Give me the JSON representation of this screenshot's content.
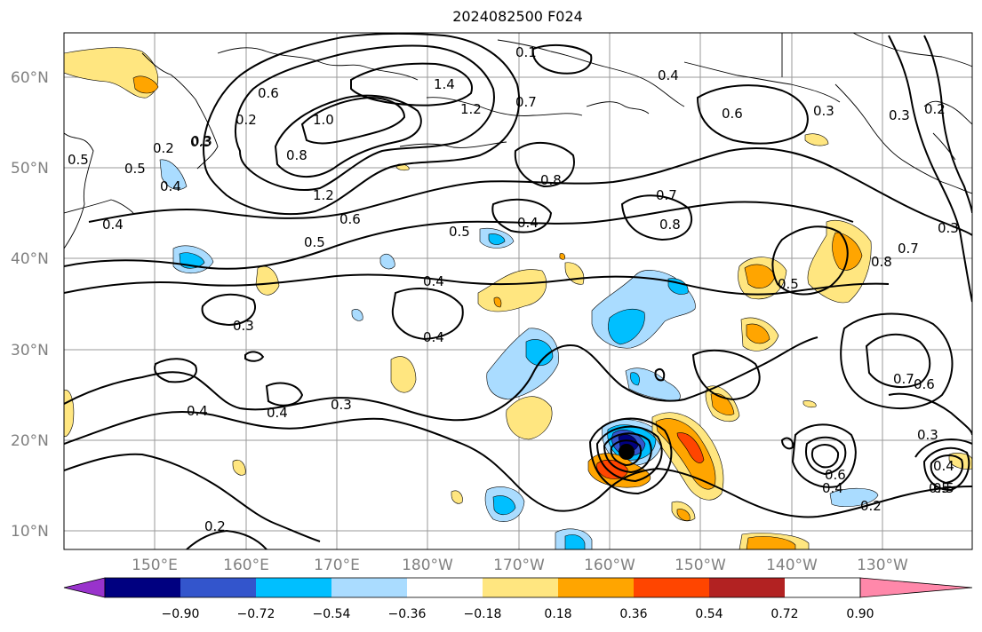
{
  "title": "2024082500 F024",
  "lat_labels": [
    "60°N",
    "50°N",
    "40°N",
    "30°N",
    "20°N",
    "10°N"
  ],
  "lon_labels": [
    "150°E",
    "160°E",
    "170°E",
    "180°W",
    "170°W",
    "160°W",
    "150°W",
    "140°W",
    "130°W"
  ],
  "colorbar": {
    "tick_labels": [
      "−0.90",
      "−0.72",
      "−0.54",
      "−0.36",
      "−0.18",
      "0.18",
      "0.36",
      "0.54",
      "0.72",
      "0.90"
    ],
    "colors": [
      "#9933cc",
      "#000080",
      "#3355cc",
      "#00bfff",
      "#aadcff",
      "#ffffff",
      "#ffe680",
      "#ffa500",
      "#ff4500",
      "#b22222",
      "#ff88aa"
    ]
  },
  "contour_labels": [
    "1.4",
    "1.2",
    "1.0",
    "0.8",
    "0.7",
    "0.6",
    "0.5",
    "0.4",
    "0.3",
    "0.2",
    "0.2",
    "0.3",
    "0.5",
    "0.4",
    "0.6",
    "0.5",
    "1.2",
    "0.5",
    "0.4",
    "0.8",
    "0.7",
    "0.8",
    "0.6",
    "0.3",
    "0.4",
    "0.3",
    "0.2",
    "0.5",
    "0.4",
    "0.3",
    "0.4",
    "0.4",
    "0.3",
    "0.4",
    "0.2",
    "0.8",
    "0.7",
    "0.5",
    "0.7",
    "0.6",
    "0.6",
    "0.4",
    "0.2",
    "0.4",
    "0.5",
    "0.3",
    "0.1",
    "0.3"
  ]
}
